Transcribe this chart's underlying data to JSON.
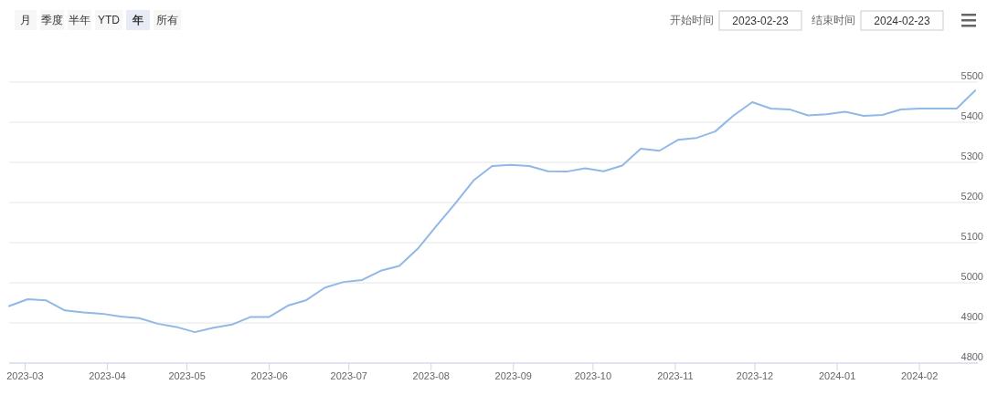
{
  "chart_data": {
    "type": "line",
    "annotations": [
      "月",
      "季度",
      "半年",
      "YTD",
      "年",
      "所有",
      "开始时间",
      "2023-02-23",
      "结束时间",
      "2024-02-23"
    ],
    "x": [
      "2023-02-23",
      "2023-03-02",
      "2023-03-09",
      "2023-03-16",
      "2023-03-23",
      "2023-03-30",
      "2023-04-06",
      "2023-04-13",
      "2023-04-20",
      "2023-04-27",
      "2023-05-04",
      "2023-05-11",
      "2023-05-18",
      "2023-05-25",
      "2023-06-01",
      "2023-06-08",
      "2023-06-15",
      "2023-06-22",
      "2023-06-29",
      "2023-07-06",
      "2023-07-13",
      "2023-07-20",
      "2023-07-27",
      "2023-08-03",
      "2023-08-10",
      "2023-08-17",
      "2023-08-24",
      "2023-08-31",
      "2023-09-07",
      "2023-09-14",
      "2023-09-21",
      "2023-09-28",
      "2023-10-05",
      "2023-10-12",
      "2023-10-19",
      "2023-10-26",
      "2023-11-02",
      "2023-11-09",
      "2023-11-16",
      "2023-11-23",
      "2023-11-30",
      "2023-12-07",
      "2023-12-14",
      "2023-12-21",
      "2023-12-28",
      "2024-01-04",
      "2024-01-11",
      "2024-01-18",
      "2024-01-25",
      "2024-02-01",
      "2024-02-08",
      "2024-02-15",
      "2024-02-22"
    ],
    "series": [
      {
        "color": "#91b8e6",
        "values": [
          4942,
          4959,
          4956,
          4931,
          4926,
          4923,
          4916,
          4912,
          4898,
          4890,
          4877,
          4888,
          4896,
          4915,
          4915,
          4943,
          4957,
          4988,
          5002,
          5007,
          5030,
          5042,
          5085,
          5142,
          5197,
          5255,
          5291,
          5294,
          5291,
          5278,
          5277,
          5285,
          5278,
          5292,
          5334,
          5329,
          5356,
          5361,
          5377,
          5417,
          5450,
          5434,
          5432,
          5417,
          5420,
          5426,
          5416,
          5418,
          5432,
          5434,
          5434,
          5434,
          5479
        ]
      }
    ],
    "xlim": [
      "2023-02-23",
      "2024-02-23"
    ],
    "xticks": [
      "2023-03",
      "2023-04",
      "2023-05",
      "2023-06",
      "2023-07",
      "2023-08",
      "2023-09",
      "2023-10",
      "2023-11",
      "2023-12",
      "2024-01",
      "2024-02"
    ],
    "ylim": [
      4800,
      5500
    ],
    "yticks": [
      4800,
      4900,
      5000,
      5100,
      5200,
      5300,
      5400,
      5500
    ],
    "grid": "y",
    "marker": "none",
    "line_style": "solid"
  }
}
